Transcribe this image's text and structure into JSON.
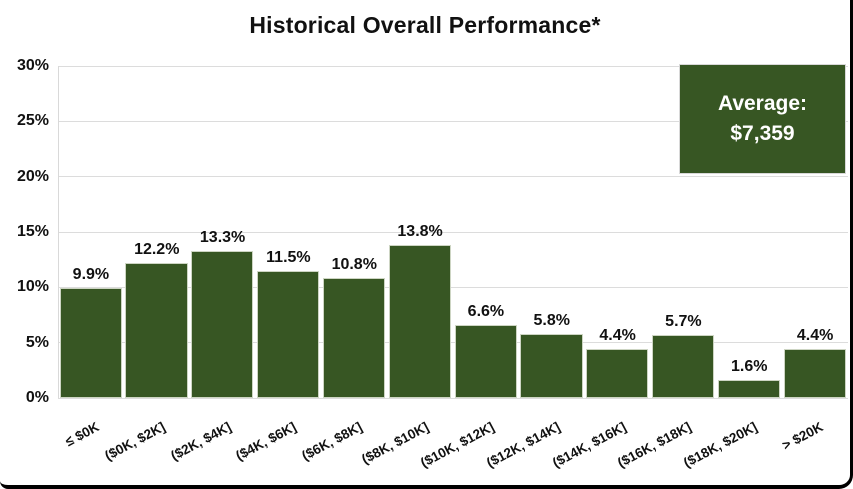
{
  "chart_data": {
    "type": "bar",
    "title": "Historical Overall Performance*",
    "categories": [
      "≤ $0K",
      "($0K, $2K]",
      "($2K, $4K]",
      "($4K, $6K]",
      "($6K, $8K]",
      "($8K, $10K]",
      "($10K, $12K]",
      "($12K, $14K]",
      "($14K, $16K]",
      "($16K, $18K]",
      "($18K, $20K]",
      "> $20K"
    ],
    "values": [
      9.9,
      12.2,
      13.3,
      11.5,
      10.8,
      13.8,
      6.6,
      5.8,
      4.4,
      5.7,
      1.6,
      4.4
    ],
    "value_labels": [
      "9.9%",
      "12.2%",
      "13.3%",
      "11.5%",
      "10.8%",
      "13.8%",
      "6.6%",
      "5.8%",
      "4.4%",
      "5.7%",
      "1.6%",
      "4.4%"
    ],
    "xlabel": "",
    "ylabel": "",
    "ylim": [
      0,
      30
    ],
    "yticks": [
      "0%",
      "5%",
      "10%",
      "15%",
      "20%",
      "25%",
      "30%"
    ],
    "grid": "horizontal gridlines on",
    "legend": "none",
    "bar_color": "#375623",
    "gridline_color": "#DCDCDC",
    "label_color": "#111111"
  },
  "average_callout": {
    "label": "Average:",
    "value": "$7,359",
    "bg_color": "#375623",
    "text_color": "#FFFFFF"
  }
}
